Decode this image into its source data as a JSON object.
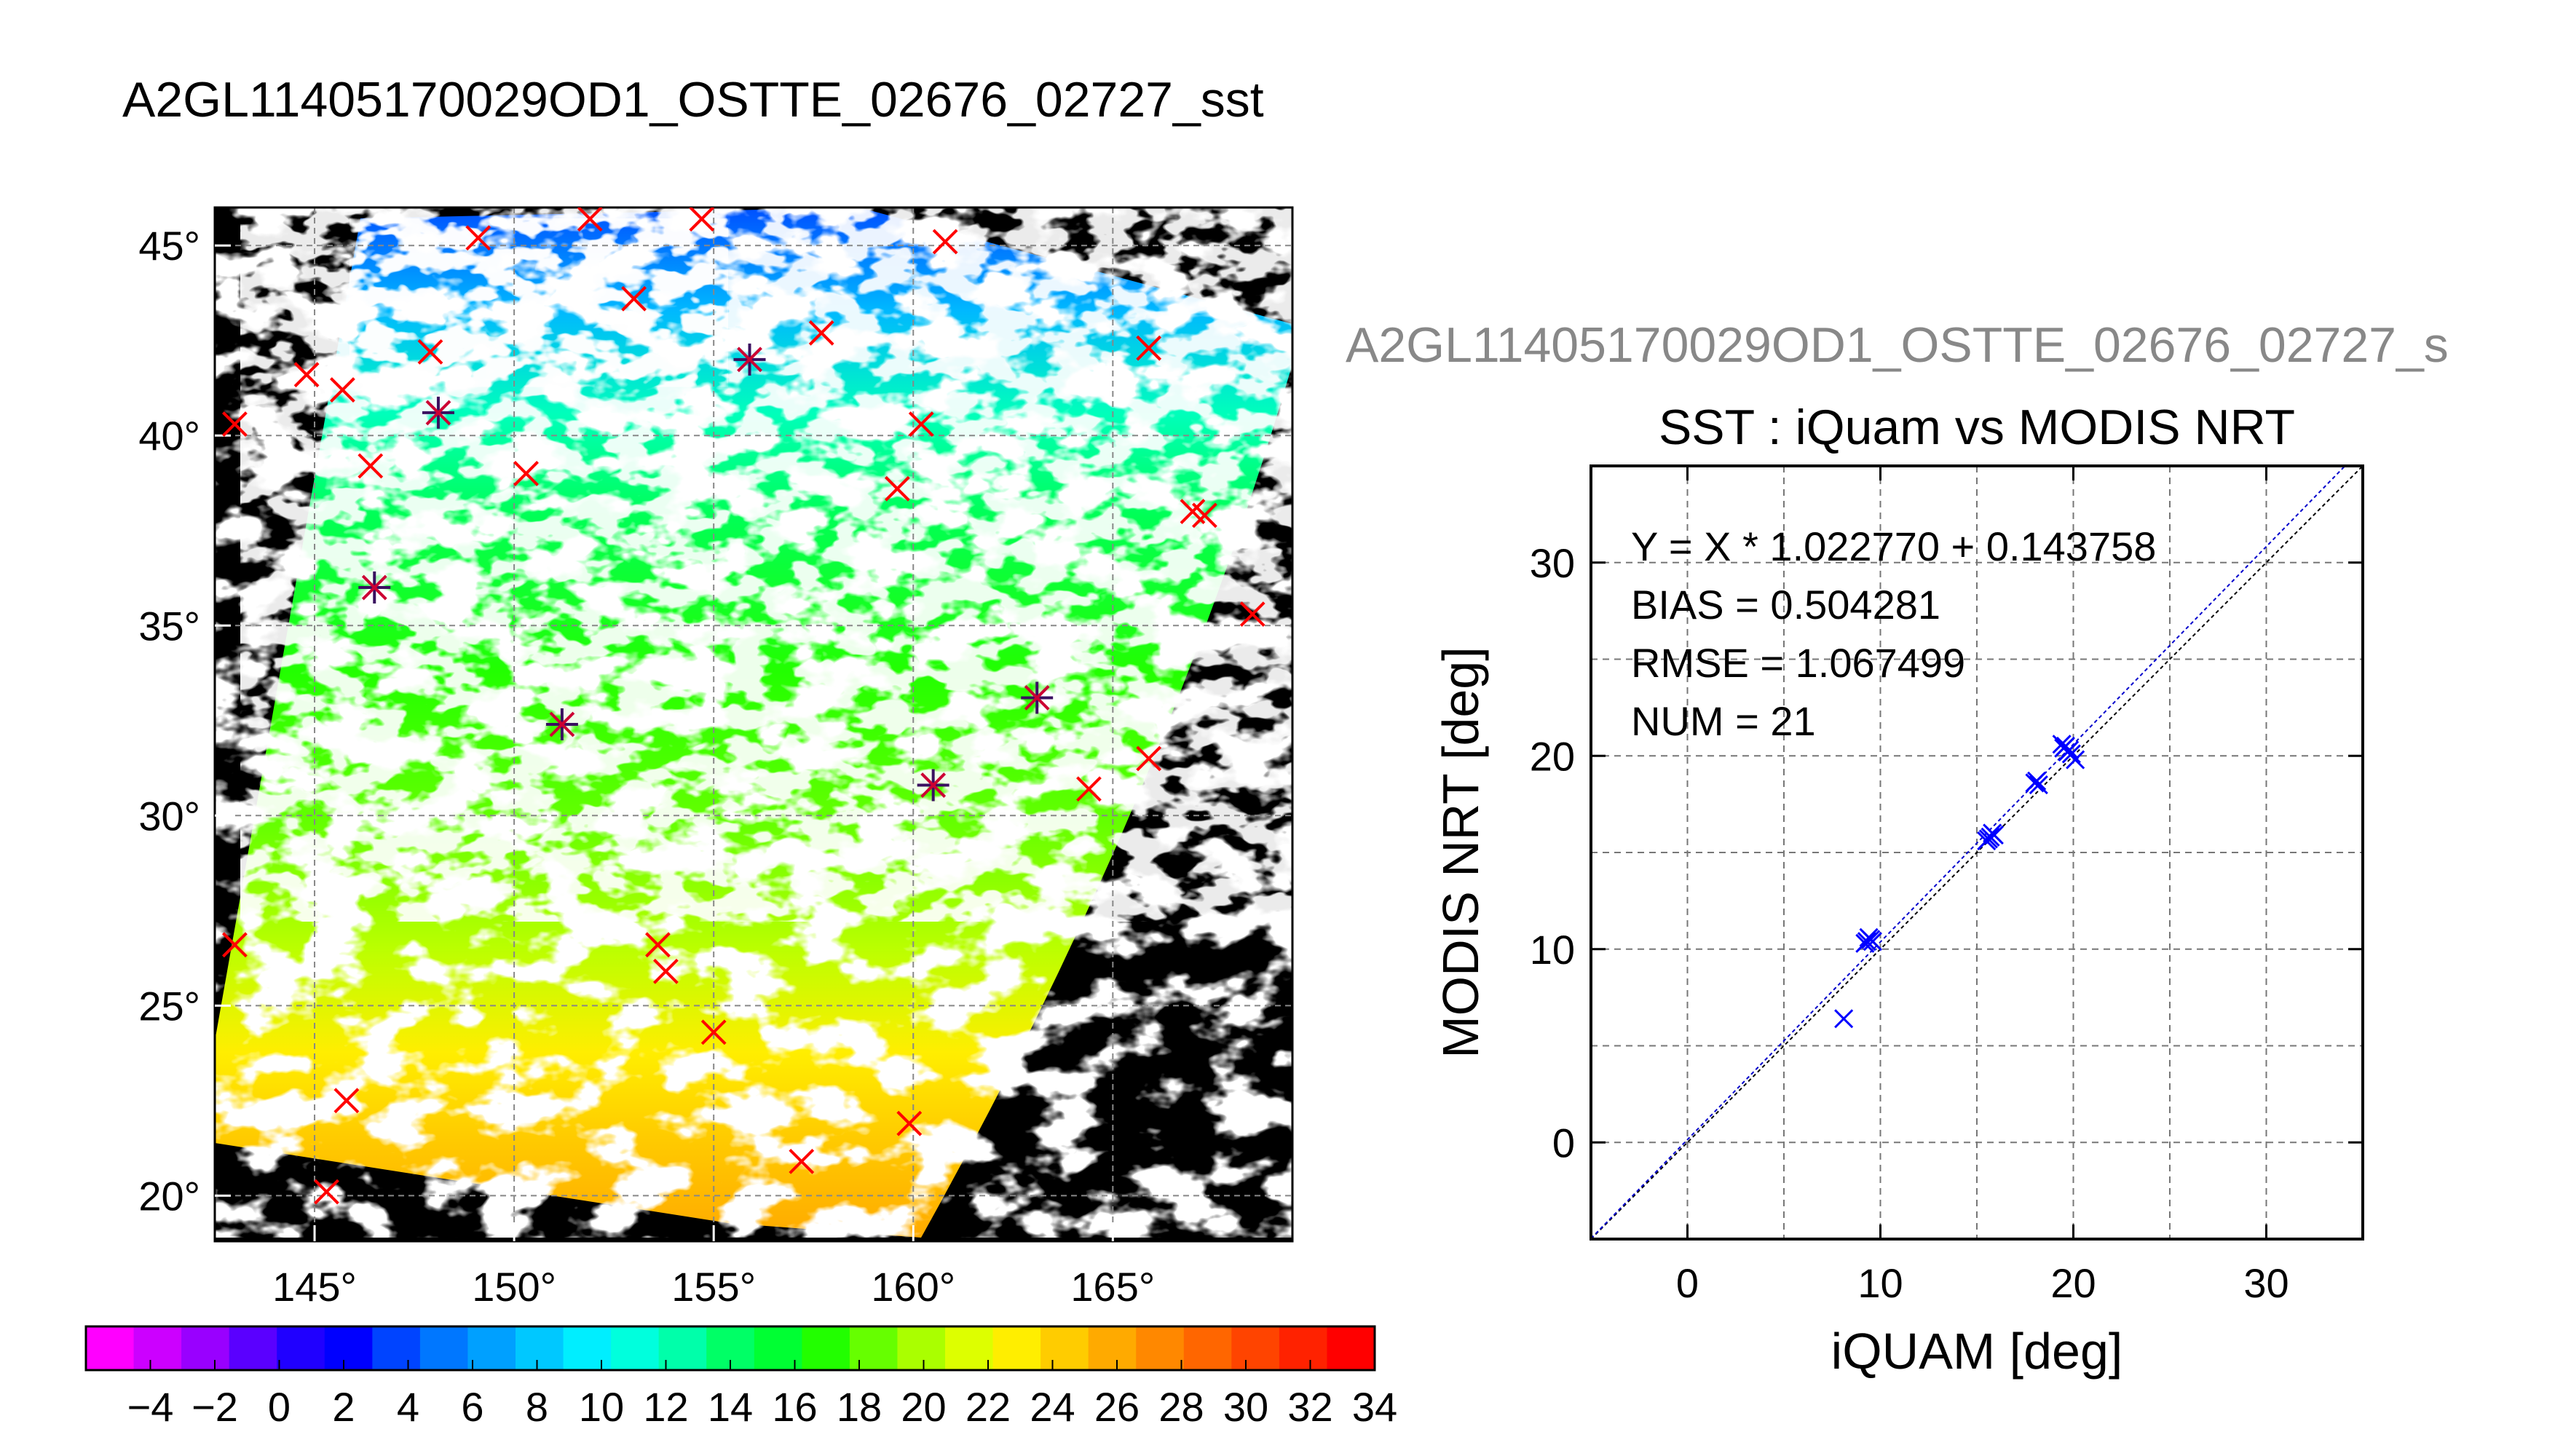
{
  "figure": {
    "main_title": "A2GL11405170029OD1_OSTTE_02676_02727_sst",
    "scatter_supertitle": "A2GL11405170029OD1_OSTTE_02676_02727_s"
  },
  "chart_data": [
    {
      "type": "heatmap",
      "subtype": "sst-map",
      "x_ticks": [
        145,
        150,
        155,
        160,
        165
      ],
      "x_tick_labels": [
        "145°",
        "150°",
        "155°",
        "160°",
        "165°"
      ],
      "y_ticks": [
        20,
        25,
        30,
        35,
        40,
        45
      ],
      "y_tick_labels": [
        "20°",
        "25°",
        "30°",
        "35°",
        "40°",
        "45°"
      ],
      "xlim": [
        142.5,
        169.5
      ],
      "ylim": [
        18.8,
        46.0
      ],
      "grid": true,
      "background": "#000000",
      "cloud_color": "#ffffff",
      "stations_red": [
        [
          143.0,
          40.3
        ],
        [
          144.8,
          41.6
        ],
        [
          145.7,
          41.2
        ],
        [
          149.1,
          45.2
        ],
        [
          151.9,
          45.7
        ],
        [
          154.7,
          45.7
        ],
        [
          147.9,
          42.2
        ],
        [
          146.4,
          39.2
        ],
        [
          150.3,
          39.0
        ],
        [
          153.0,
          43.6
        ],
        [
          157.7,
          42.7
        ],
        [
          160.8,
          45.1
        ],
        [
          165.9,
          42.3
        ],
        [
          160.2,
          40.3
        ],
        [
          159.6,
          38.6
        ],
        [
          167.0,
          38.0
        ],
        [
          167.3,
          37.9
        ],
        [
          168.5,
          35.3
        ],
        [
          165.9,
          31.5
        ],
        [
          164.4,
          30.7
        ],
        [
          143.0,
          26.6
        ],
        [
          153.6,
          26.6
        ],
        [
          153.8,
          25.9
        ],
        [
          155.0,
          24.3
        ],
        [
          145.8,
          22.5
        ],
        [
          145.3,
          20.1
        ],
        [
          157.2,
          20.9
        ],
        [
          159.9,
          21.9
        ]
      ],
      "stations_matched": [
        [
          146.5,
          36.0
        ],
        [
          148.1,
          40.6
        ],
        [
          155.9,
          42.0
        ],
        [
          151.2,
          32.4
        ],
        [
          160.5,
          30.8
        ],
        [
          163.1,
          33.1
        ]
      ]
    },
    {
      "type": "colorbar",
      "ticks": [
        -4,
        -2,
        0,
        2,
        4,
        6,
        8,
        10,
        12,
        14,
        16,
        18,
        20,
        22,
        24,
        26,
        28,
        30,
        32,
        34
      ],
      "tick_labels": [
        "−4",
        "−2",
        "0",
        "2",
        "4",
        "6",
        "8",
        "10",
        "12",
        "14",
        "16",
        "18",
        "20",
        "22",
        "24",
        "26",
        "28",
        "30",
        "32",
        "34"
      ],
      "range": [
        -6,
        34
      ],
      "colors": [
        "#ff00ff",
        "#cc00ff",
        "#9900ff",
        "#5a00ff",
        "#2000ff",
        "#0000ff",
        "#0044ff",
        "#0077ff",
        "#00a0ff",
        "#00c8ff",
        "#00eeff",
        "#00ffdd",
        "#00ffaa",
        "#00ff66",
        "#00ff33",
        "#22ff00",
        "#66ff00",
        "#aaff00",
        "#ddff00",
        "#ffee00",
        "#ffcc00",
        "#ffaa00",
        "#ff8800",
        "#ff6600",
        "#ff4400",
        "#ff2200",
        "#ff0000"
      ]
    },
    {
      "type": "scatter",
      "title": "SST : iQuam vs MODIS NRT",
      "xlabel": "iQUAM [deg]",
      "ylabel": "MODIS NRT [deg]",
      "xlim": [
        -5,
        35
      ],
      "ylim": [
        -5,
        35
      ],
      "x_ticks": [
        0,
        10,
        20,
        30
      ],
      "y_ticks": [
        0,
        10,
        20,
        30
      ],
      "grid": true,
      "annotations": [
        "Y = X * 1.022770 + 0.143758",
        "BIAS = 0.504281",
        "RMSE = 1.067499",
        "NUM = 21"
      ],
      "fit": {
        "slope": 1.02277,
        "intercept": 0.143758
      },
      "points": [
        [
          8.1,
          6.4
        ],
        [
          9.3,
          10.4
        ],
        [
          9.5,
          10.5
        ],
        [
          9.2,
          10.3
        ],
        [
          9.6,
          10.4
        ],
        [
          15.6,
          15.7
        ],
        [
          15.8,
          16.0
        ],
        [
          15.7,
          15.8
        ],
        [
          15.9,
          15.9
        ],
        [
          18.0,
          18.6
        ],
        [
          18.1,
          18.7
        ],
        [
          19.5,
          20.4
        ],
        [
          19.6,
          20.5
        ],
        [
          19.8,
          20.3
        ],
        [
          19.7,
          20.2
        ],
        [
          19.9,
          20.1
        ],
        [
          20.1,
          19.8
        ],
        [
          19.4,
          20.6
        ],
        [
          15.5,
          15.6
        ],
        [
          9.4,
          10.6
        ],
        [
          18.2,
          18.5
        ]
      ],
      "point_color": "#0000ff"
    }
  ]
}
